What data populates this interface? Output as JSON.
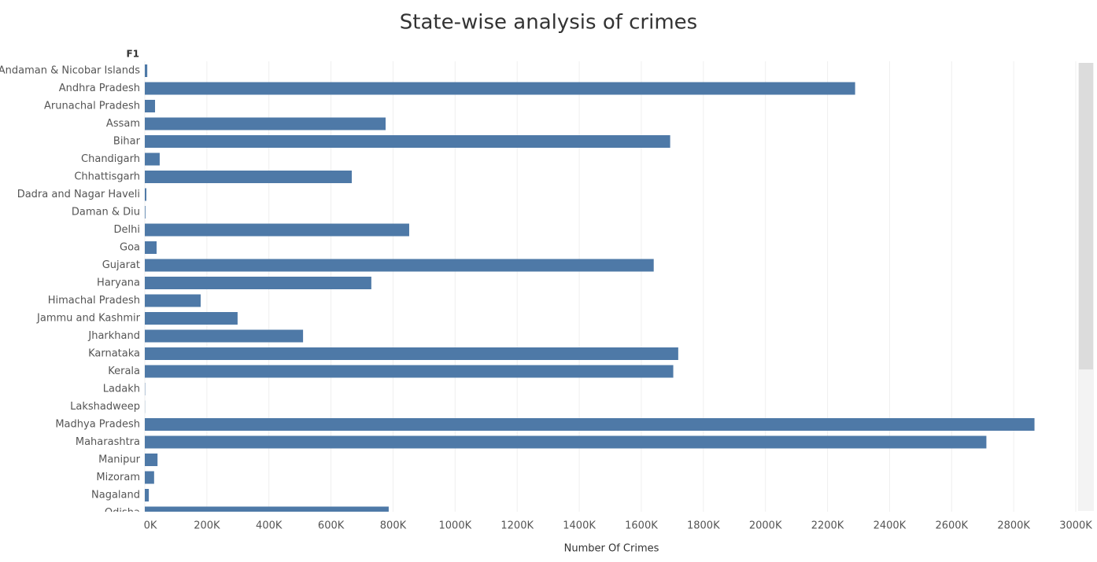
{
  "chart_data": {
    "type": "bar",
    "orientation": "horizontal",
    "title": "State-wise analysis of crimes",
    "category_header": "F1",
    "x_label": "Number Of Crimes",
    "categories": [
      "Andaman & Nicobar Islands",
      "Andhra Pradesh",
      "Arunachal Pradesh",
      "Assam",
      "Bihar",
      "Chandigarh",
      "Chhattisgarh",
      "Dadra and Nagar Haveli",
      "Daman & Diu",
      "Delhi",
      "Goa",
      "Gujarat",
      "Haryana",
      "Himachal Pradesh",
      "Jammu and Kashmir",
      "Jharkhand",
      "Karnataka",
      "Kerala",
      "Ladakh",
      "Lakshadweep",
      "Madhya Pradesh",
      "Maharashtra",
      "Manipur",
      "Mizoram",
      "Nagaland",
      "Odisha"
    ],
    "values": [
      8000,
      2289000,
      33000,
      776000,
      1693000,
      48000,
      667000,
      5000,
      2000,
      852000,
      38000,
      1640000,
      730000,
      180000,
      299000,
      510000,
      1719000,
      1703000,
      1000,
      500,
      2867000,
      2712000,
      41000,
      30000,
      13000,
      786000
    ],
    "color": "#4e79a7",
    "xlim": [
      0,
      3000000
    ],
    "xticks": [
      {
        "value": 0,
        "label": "0K"
      },
      {
        "value": 200000,
        "label": "200K"
      },
      {
        "value": 400000,
        "label": "400K"
      },
      {
        "value": 600000,
        "label": "600K"
      },
      {
        "value": 800000,
        "label": "800K"
      },
      {
        "value": 1000000,
        "label": "1000K"
      },
      {
        "value": 1200000,
        "label": "1200K"
      },
      {
        "value": 1400000,
        "label": "1400K"
      },
      {
        "value": 1600000,
        "label": "1600K"
      },
      {
        "value": 1800000,
        "label": "1800K"
      },
      {
        "value": 2000000,
        "label": "2000K"
      },
      {
        "value": 2200000,
        "label": "2200K"
      },
      {
        "value": 2400000,
        "label": "2400K"
      },
      {
        "value": 2600000,
        "label": "2600K"
      },
      {
        "value": 2800000,
        "label": "2800K"
      },
      {
        "value": 3000000,
        "label": "3000K"
      }
    ],
    "grid": true
  }
}
